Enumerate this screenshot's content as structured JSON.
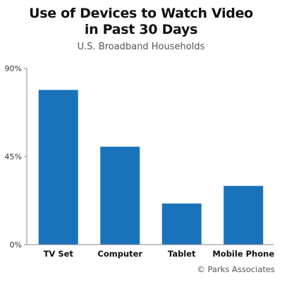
{
  "chart_data": {
    "type": "bar",
    "title_lines": [
      "Use of Devices to Watch Video",
      "in Past 30 Days"
    ],
    "subtitle": "U.S. Broadband Households",
    "categories": [
      "TV Set",
      "Computer",
      "Tablet",
      "Mobile Phone"
    ],
    "values": [
      79,
      50,
      21,
      30
    ],
    "ylim": [
      0,
      90
    ],
    "yticks": [
      0,
      45,
      90
    ],
    "ytick_labels": [
      "0%",
      "45%",
      "90%"
    ],
    "xlabel": "",
    "ylabel": "",
    "bar_color": "#1a72bb",
    "grid": false,
    "legend": "none"
  },
  "source": "© Parks Associates"
}
